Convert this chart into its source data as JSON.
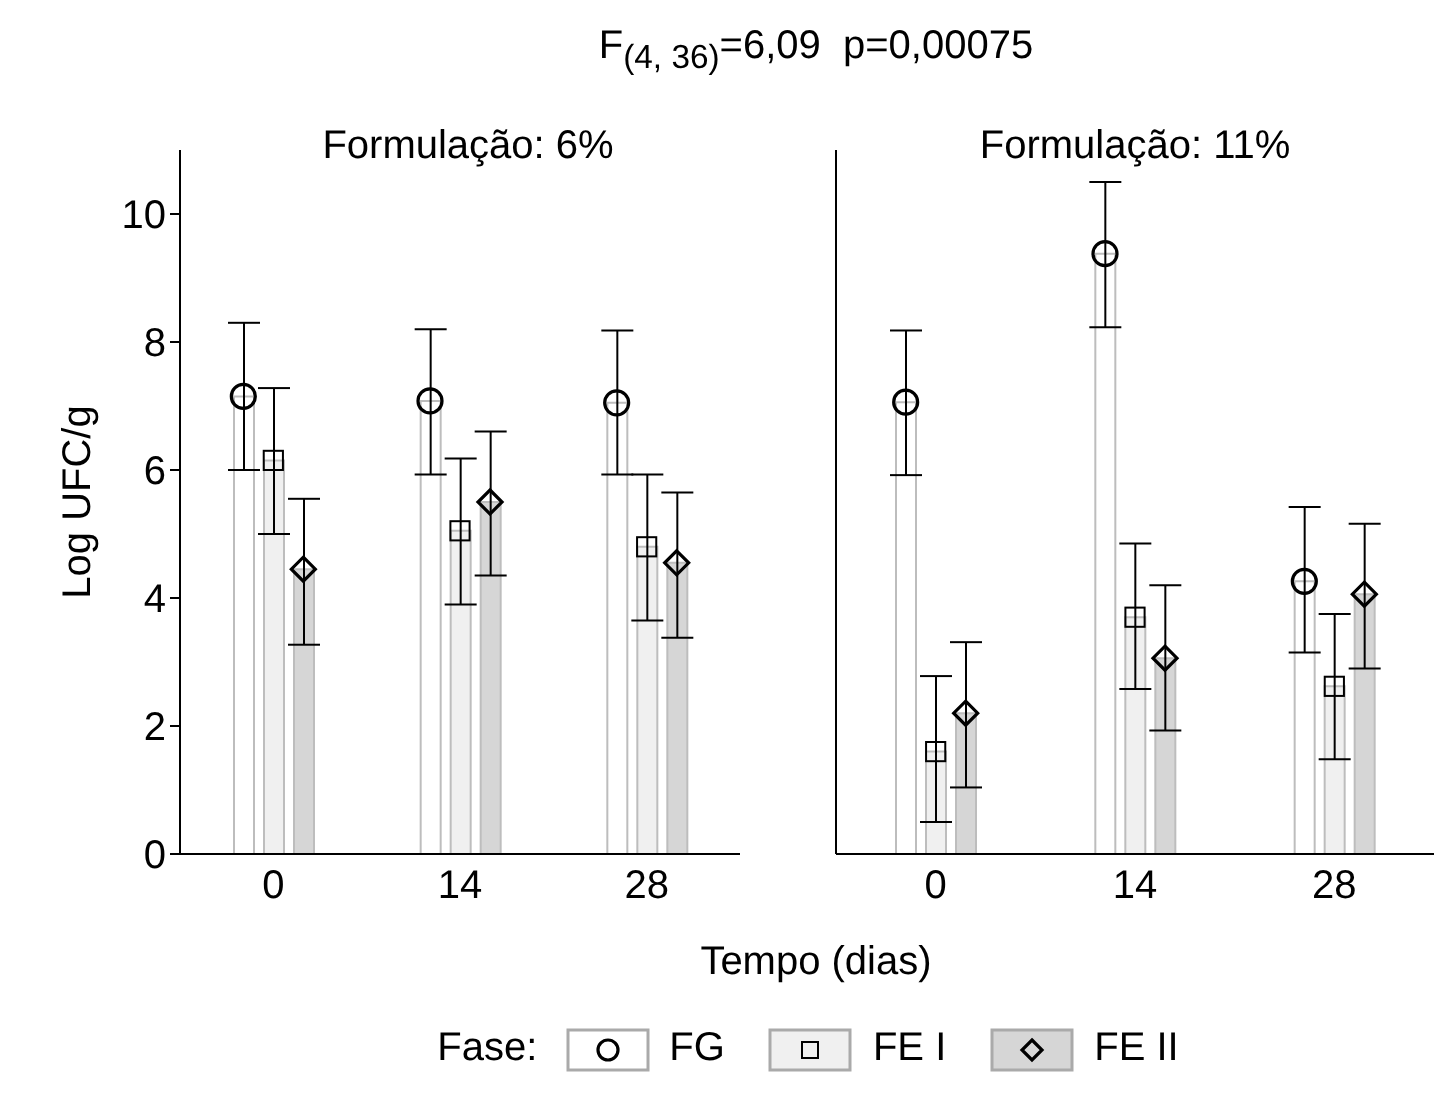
{
  "chart_data": [
    {
      "type": "bar",
      "title": "Formulação: 6%",
      "annotations": [
        "F$_{(4, 36)}$=6,09  p=0,00075"
      ],
      "xlabel": "Tempo (dias)",
      "ylabel": "Log UFC/g",
      "legend_title": "Fase:",
      "legend": "bottom",
      "grid": false,
      "categories": [
        "0",
        "14",
        "28"
      ],
      "ylim": [
        0,
        11
      ],
      "yticks": [
        0,
        2,
        4,
        6,
        8,
        10
      ],
      "series": [
        {
          "name": "FG",
          "color": "#ffffff",
          "values": [
            7.15,
            7.08,
            7.05
          ],
          "errors": [
            [
              6.0,
              8.3
            ],
            [
              5.93,
              8.2
            ],
            [
              5.93,
              8.18
            ]
          ]
        },
        {
          "name": "FE I",
          "color": "#f0f0f0",
          "values": [
            6.15,
            5.05,
            4.8
          ],
          "errors": [
            [
              5.0,
              7.28
            ],
            [
              3.9,
              6.18
            ],
            [
              3.65,
              5.93
            ]
          ]
        },
        {
          "name": "FE II",
          "color": "#d6d6d6",
          "values": [
            4.45,
            5.5,
            4.55
          ],
          "errors": [
            [
              3.27,
              5.55
            ],
            [
              4.35,
              6.6
            ],
            [
              3.38,
              5.65
            ]
          ]
        },
        {
          "type": "scatter",
          "marker": "circle",
          "color": "#000000",
          "x": [
            "0",
            "14",
            "28"
          ],
          "values": [
            7.15,
            7.08,
            7.05
          ]
        },
        {
          "type": "scatter",
          "marker": "square",
          "color": "#000000",
          "x": [
            "0",
            "14",
            "28"
          ],
          "values": [
            6.15,
            5.05,
            4.8
          ]
        },
        {
          "type": "scatter",
          "marker": "diamond",
          "color": "#000000",
          "x": [
            "0",
            "14",
            "28"
          ],
          "values": [
            4.45,
            5.5,
            4.55
          ]
        }
      ]
    },
    {
      "type": "bar",
      "title": "Formulação: 11%",
      "tick_labels": "x",
      "grid": false,
      "categories": [
        "0",
        "14",
        "28"
      ],
      "ylim": [
        0,
        11
      ],
      "yticks": [
        0,
        2,
        4,
        6,
        8,
        10
      ],
      "series": [
        {
          "color": "#ffffff",
          "values": [
            7.06,
            9.38,
            4.26
          ],
          "errors": [
            [
              5.92,
              8.18
            ],
            [
              8.23,
              10.5
            ],
            [
              3.15,
              5.42
            ]
          ]
        },
        {
          "color": "#f0f0f0",
          "values": [
            1.6,
            3.7,
            2.62
          ],
          "errors": [
            [
              0.5,
              2.78
            ],
            [
              2.58,
              4.85
            ],
            [
              1.48,
              3.75
            ]
          ]
        },
        {
          "color": "#d6d6d6",
          "values": [
            2.2,
            3.06,
            4.06
          ],
          "errors": [
            [
              1.04,
              3.31
            ],
            [
              1.93,
              4.2
            ],
            [
              2.9,
              5.16
            ]
          ]
        },
        {
          "type": "scatter",
          "marker": "circle",
          "color": "#000000",
          "x": [
            "0",
            "14",
            "28"
          ],
          "values": [
            7.06,
            9.38,
            4.26
          ]
        },
        {
          "type": "scatter",
          "marker": "square",
          "color": "#000000",
          "x": [
            "0",
            "14",
            "28"
          ],
          "values": [
            1.6,
            3.7,
            2.62
          ]
        },
        {
          "type": "scatter",
          "marker": "diamond",
          "color": "#000000",
          "x": [
            "0",
            "14",
            "28"
          ],
          "values": [
            2.2,
            3.06,
            4.06
          ]
        }
      ]
    }
  ]
}
